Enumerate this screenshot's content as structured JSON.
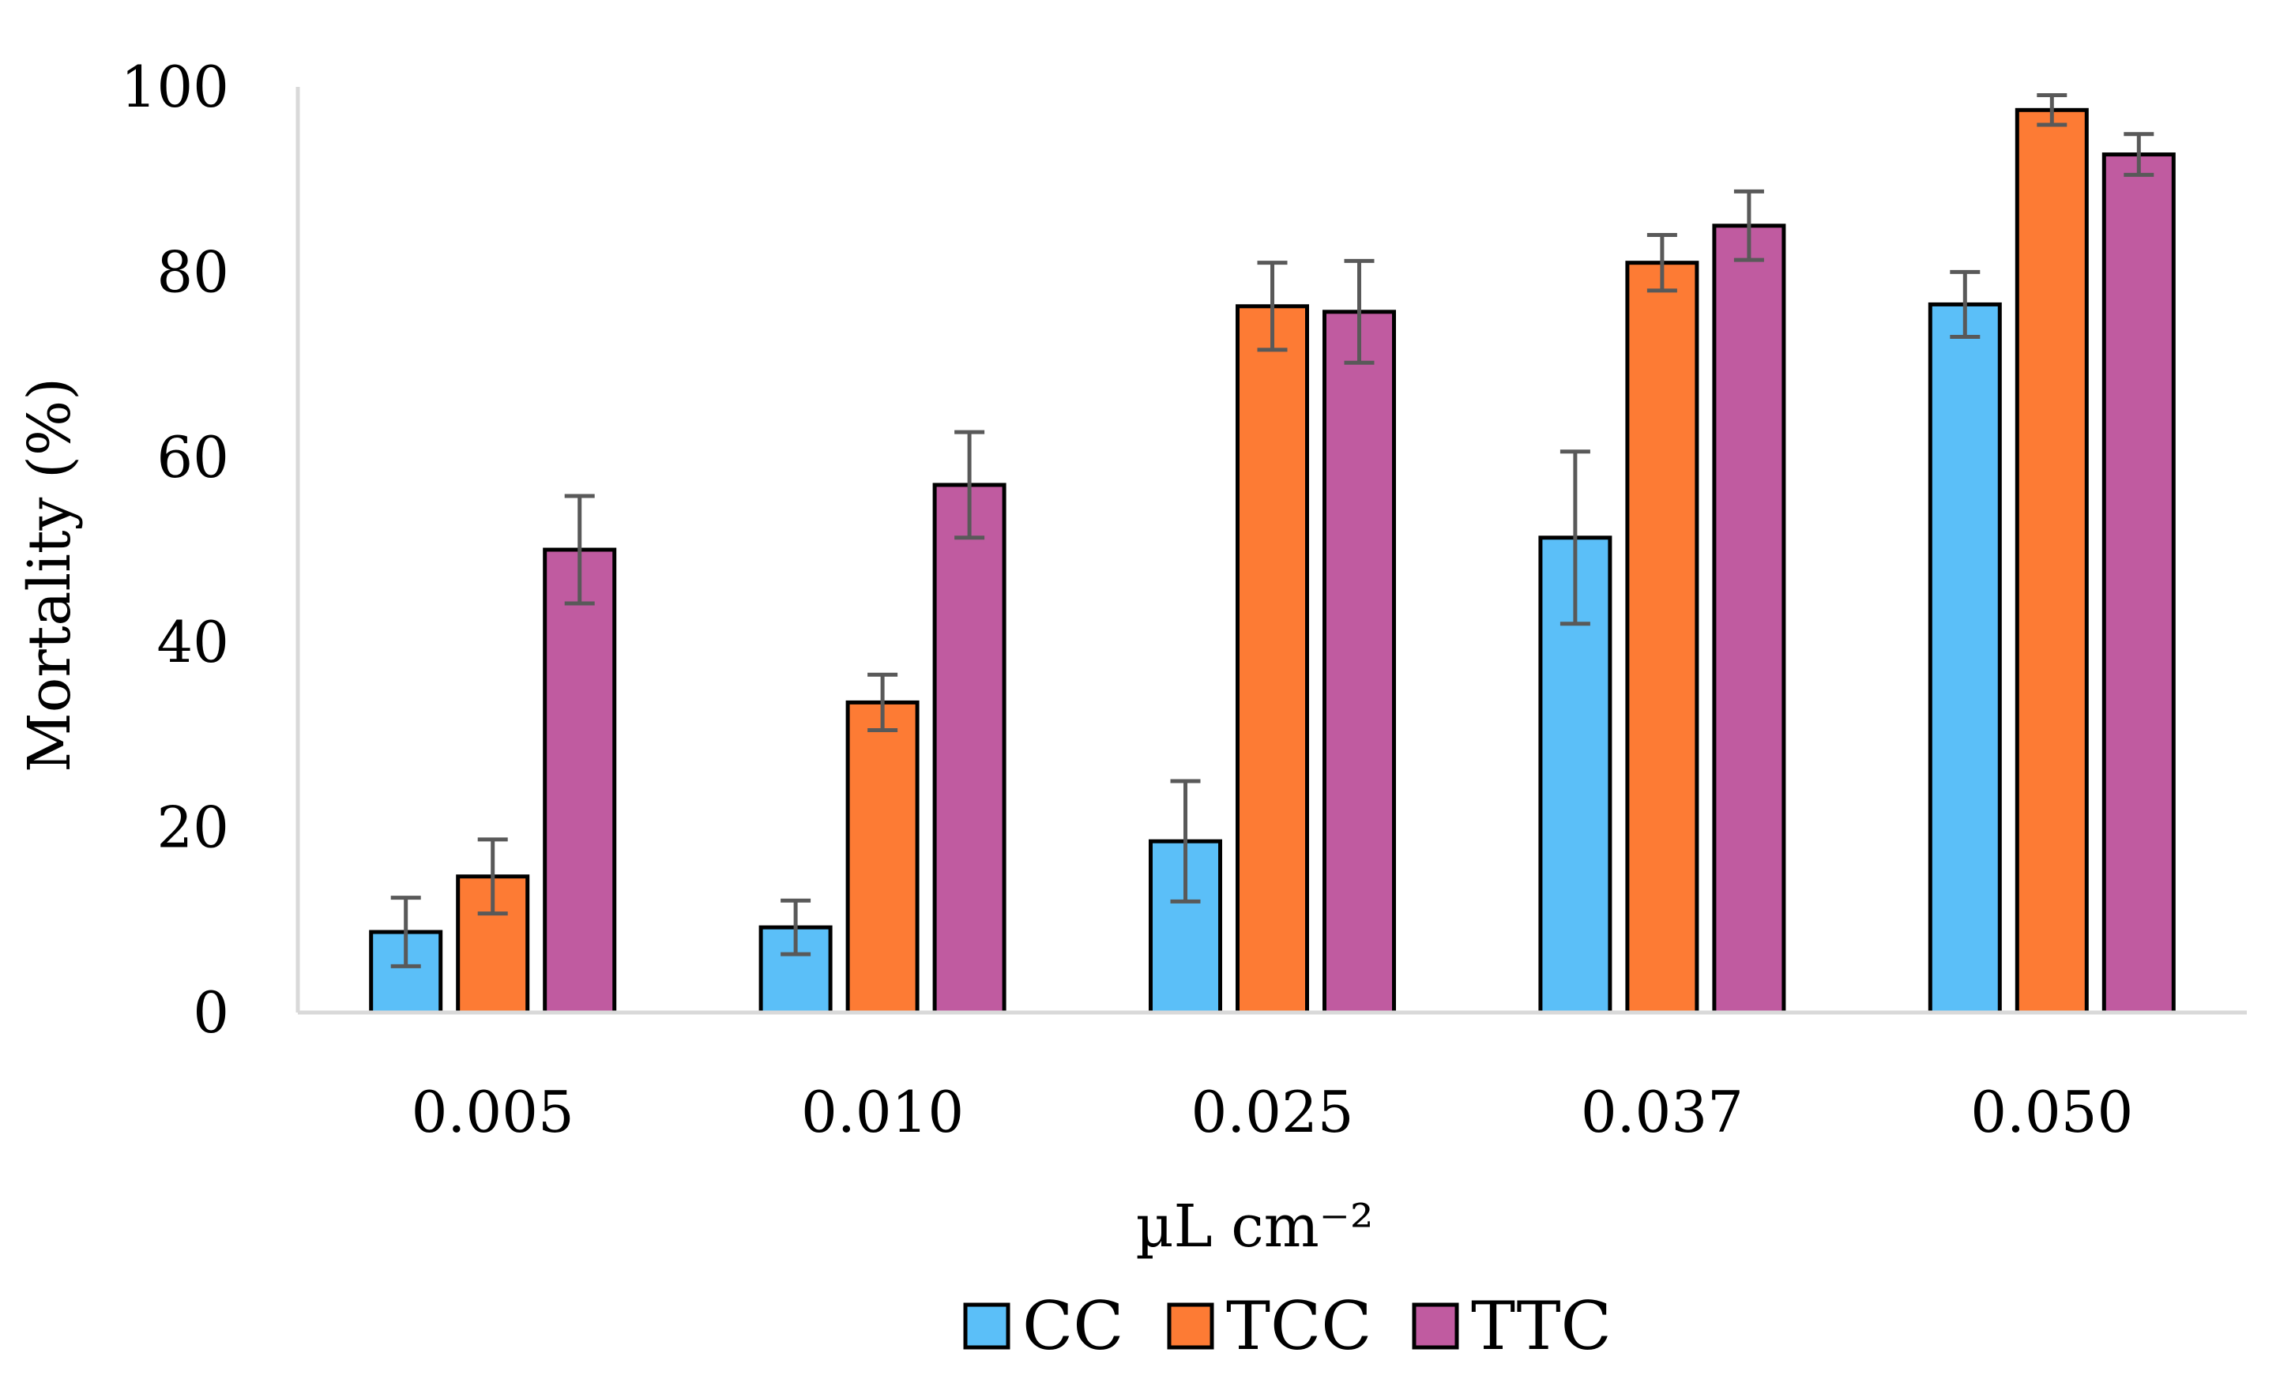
{
  "chart_data": {
    "type": "bar",
    "title": "",
    "xlabel": "µL cm⁻²",
    "ylabel": "Mortality (%)",
    "ylim": [
      0,
      100
    ],
    "yticks": [
      0,
      20,
      40,
      60,
      80,
      100
    ],
    "ytick_labels": [
      "0",
      "20",
      "40",
      "60",
      "80",
      "100"
    ],
    "grid": false,
    "legend_position": "bottom",
    "categories": [
      "0.005",
      "0.010",
      "0.025",
      "0.037",
      "0.050"
    ],
    "series": [
      {
        "name": "CC",
        "color": "#5BBFF8",
        "values": [
          8.7,
          9.2,
          18.5,
          51.3,
          76.5
        ],
        "errors": [
          3.7,
          2.9,
          6.5,
          9.3,
          3.5
        ]
      },
      {
        "name": "TCC",
        "color": "#FD7B34",
        "values": [
          14.7,
          33.5,
          76.3,
          81.0,
          97.5
        ],
        "errors": [
          4.0,
          3.0,
          4.7,
          3.0,
          1.6
        ]
      },
      {
        "name": "TTC",
        "color": "#C05BA0",
        "values": [
          50.0,
          57.0,
          75.7,
          85.0,
          92.7
        ],
        "errors": [
          5.8,
          5.7,
          5.5,
          3.7,
          2.2
        ]
      }
    ],
    "bar_outline_color": "#000000",
    "error_bar_color": "#595959",
    "axis_color": "#D9D9D9"
  }
}
